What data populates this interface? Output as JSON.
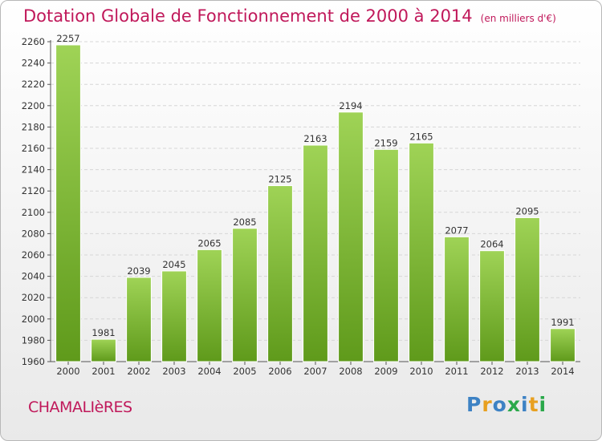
{
  "header": {
    "title": "Dotation Globale de Fonctionnement de 2000 à 2014",
    "unit": "(en milliers d'€)"
  },
  "footer": {
    "commune": "CHAMALIèRES",
    "logo": "Proxiti"
  },
  "colors": {
    "title": "#c0185a",
    "bar_top": "#9fd356",
    "bar_bottom": "#5f9a1b",
    "logo_letters": [
      "#3d82c4",
      "#e8a020",
      "#3d82c4",
      "#2aa84a",
      "#3d82c4",
      "#e8a020",
      "#2aa84a"
    ]
  },
  "chart_data": {
    "type": "bar",
    "categories": [
      "2000",
      "2001",
      "2002",
      "2003",
      "2004",
      "2005",
      "2006",
      "2007",
      "2008",
      "2009",
      "2010",
      "2011",
      "2012",
      "2013",
      "2014"
    ],
    "values": [
      2257,
      1981,
      2039,
      2045,
      2065,
      2085,
      2125,
      2163,
      2194,
      2159,
      2165,
      2077,
      2064,
      2095,
      1991
    ],
    "ylim": [
      1960,
      2260
    ],
    "yticks": [
      1960,
      1980,
      2000,
      2020,
      2040,
      2060,
      2080,
      2100,
      2120,
      2140,
      2160,
      2180,
      2200,
      2220,
      2240,
      2260
    ],
    "grid": true,
    "legend": "none"
  }
}
